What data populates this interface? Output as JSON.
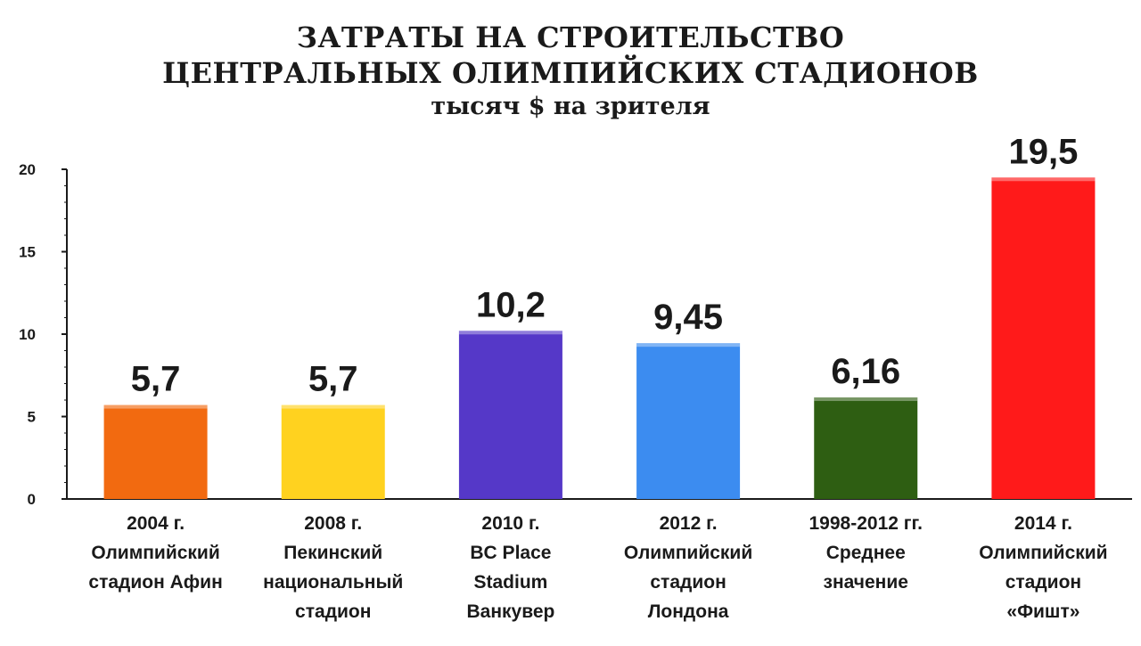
{
  "chart_data": {
    "type": "bar",
    "title": [
      "ЗАТРАТЫ НА СТРОИТЕЛЬСТВО",
      "ЦЕНТРАЛЬНЫХ ОЛИМПИЙСКИХ СТАДИОНОВ"
    ],
    "subtitle": "тысяч $ на зрителя",
    "ylim": [
      0,
      20
    ],
    "yticks": [
      0,
      5,
      10,
      15,
      20
    ],
    "grid": false,
    "legend": "none",
    "categories": [
      [
        "2004 г.",
        "Олимпийский",
        "стадион Афин"
      ],
      [
        "2008 г.",
        "Пекинский",
        "национальный",
        "стадион"
      ],
      [
        "2010 г.",
        "BC Place",
        "Stadium",
        "Ванкувер"
      ],
      [
        "2012 г.",
        "Олимпийский",
        "стадион",
        "Лондона"
      ],
      [
        "1998-2012 гг.",
        "Среднее",
        "значение"
      ],
      [
        "2014 г.",
        "Олимпийский",
        "стадион",
        "«Фишт»"
      ]
    ],
    "values": [
      5.7,
      5.7,
      10.2,
      9.45,
      6.16,
      19.5
    ],
    "value_labels": [
      "5,7",
      "5,7",
      "10,2",
      "9,45",
      "6,16",
      "19,5"
    ],
    "colors": [
      "#f26a10",
      "#ffd21f",
      "#5538c8",
      "#3c8cf0",
      "#2e5e12",
      "#ff1a1a"
    ]
  }
}
